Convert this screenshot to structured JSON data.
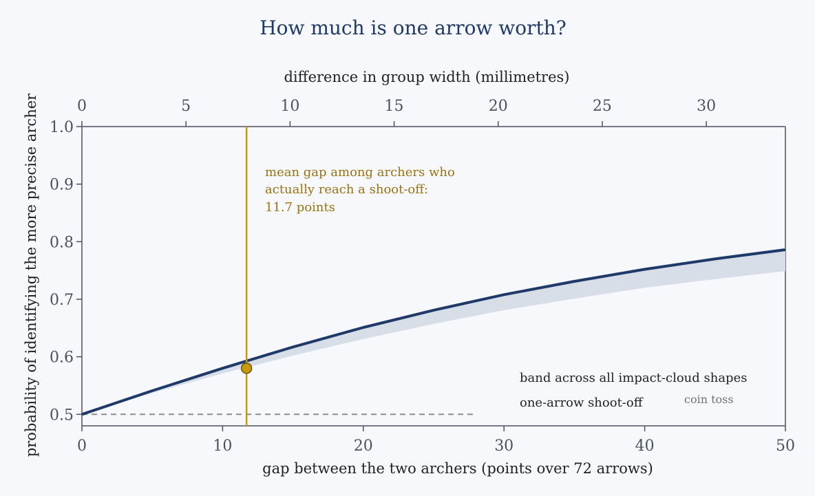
{
  "chart_data": {
    "type": "line",
    "title": "How much is one arrow worth?",
    "xlabel": "gap between the two archers (points over 72 arrows)",
    "x2label": "difference in group width (millimetres)",
    "ylabel": "probability of identifying the more precise archer",
    "xlim": [
      0,
      50
    ],
    "x2lim": [
      0,
      33.8
    ],
    "ylim": [
      0.48,
      1.0
    ],
    "x_ticks": [
      "0",
      "10",
      "20",
      "30",
      "40",
      "50"
    ],
    "x2_ticks": [
      "0",
      "5",
      "10",
      "15",
      "20",
      "25",
      "30"
    ],
    "y_ticks": [
      "0.5",
      "0.6",
      "0.7",
      "0.8",
      "0.9",
      "1.0"
    ],
    "grid": false,
    "series": [
      {
        "name": "one-arrow shoot-off",
        "x": [
          0,
          5,
          10,
          15,
          20,
          25,
          30,
          35,
          40,
          45,
          50
        ],
        "y": [
          0.5,
          0.541,
          0.58,
          0.617,
          0.651,
          0.681,
          0.708,
          0.731,
          0.752,
          0.77,
          0.786
        ]
      }
    ],
    "band": {
      "name": "band across all impact-cloud shapes",
      "x": [
        0,
        5,
        10,
        15,
        20,
        25,
        30,
        35,
        40,
        45,
        50
      ],
      "upper": [
        0.5,
        0.542,
        0.582,
        0.619,
        0.653,
        0.683,
        0.71,
        0.734,
        0.755,
        0.773,
        0.789
      ],
      "lower": [
        0.5,
        0.537,
        0.571,
        0.602,
        0.631,
        0.657,
        0.681,
        0.701,
        0.72,
        0.735,
        0.749
      ]
    },
    "reference_line": {
      "y": 0.5,
      "label": "coin toss"
    },
    "marker": {
      "x": 11.7,
      "y": 0.58,
      "annotation": [
        "mean gap among archers who",
        "actually reach a shoot-off:",
        "11.7 points"
      ]
    },
    "legend_position": "lower-right",
    "colors": {
      "line": "#1f3a68",
      "band": "#d7dee8",
      "marker": "#c9980d",
      "annotation": "#9a7210",
      "reference": "#8c8c8c",
      "axis": "#4a5160"
    }
  }
}
